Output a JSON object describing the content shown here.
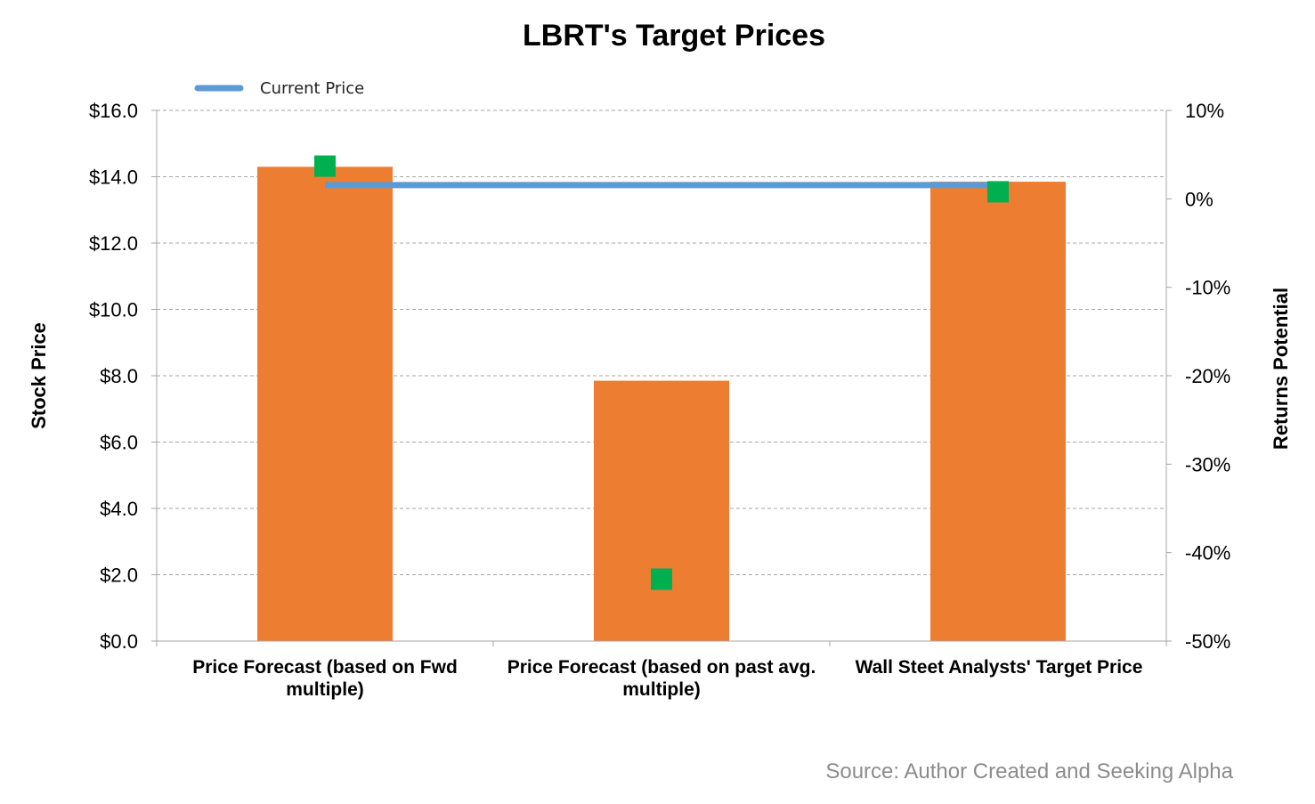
{
  "chart_data": {
    "type": "bar",
    "title": "LBRT's Target Prices",
    "ylabel": "Stock Price",
    "y2label": "Returns Potential",
    "ylim": [
      0,
      16
    ],
    "y2lim": [
      -0.5,
      0.1
    ],
    "yticks": [
      "$0.0",
      "$2.0",
      "$4.0",
      "$6.0",
      "$8.0",
      "$10.0",
      "$12.0",
      "$14.0",
      "$16.0"
    ],
    "y2ticks": [
      "-50%",
      "-40%",
      "-30%",
      "-20%",
      "-10%",
      "0%",
      "10%"
    ],
    "categories": [
      [
        "Price Forecast (based on Fwd",
        "multiple)"
      ],
      [
        "Price Forecast (based on past avg.",
        "multiple)"
      ],
      [
        "Wall Steet Analysts' Target Price"
      ]
    ],
    "bars": [
      14.3,
      7.85,
      13.85
    ],
    "current_price": {
      "name": "Current Price",
      "value": 13.75
    },
    "returns": [
      0.037,
      -0.43,
      0.008
    ],
    "grid": true,
    "legend_position": "top-left",
    "colors": {
      "bar": "#ED7D31",
      "line": "#5B9BD5",
      "marker": "#00B050",
      "grid": "#A6A6A6",
      "axis": "#A6A6A6"
    }
  },
  "source": "Source: Author Created and Seeking Alpha"
}
